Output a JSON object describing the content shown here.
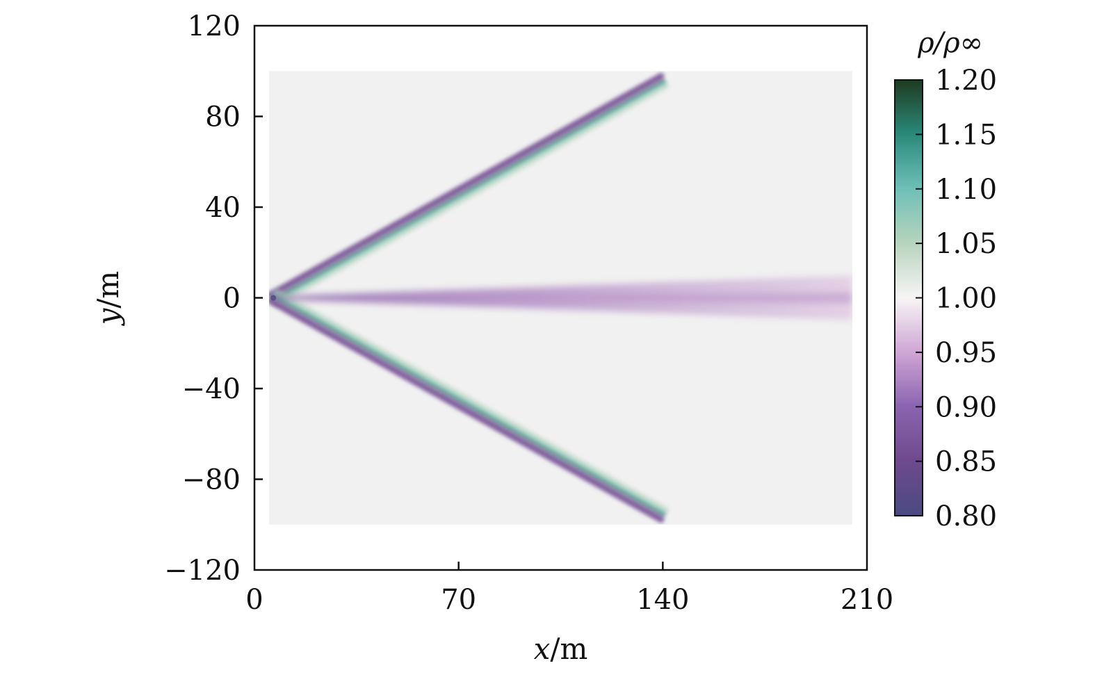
{
  "chart_data": {
    "type": "heatmap",
    "title": "",
    "xlabel": {
      "var": "x",
      "unit": "/m"
    },
    "ylabel": {
      "var": "y",
      "unit": "/m"
    },
    "xlim": [
      0,
      210
    ],
    "ylim": [
      -120,
      120
    ],
    "xticks": [
      0,
      70,
      140,
      210
    ],
    "yticks": [
      120,
      80,
      40,
      0,
      -40,
      -80,
      -120
    ],
    "ytick_labels": [
      "120",
      "80",
      "40",
      "0",
      "−40",
      "−80",
      "−120"
    ],
    "field_extent": {
      "x": [
        5,
        205
      ],
      "y": [
        -100,
        100
      ]
    },
    "field_background": 1.0,
    "features": [
      {
        "kind": "shock-wedge",
        "apex": [
          6,
          0
        ],
        "direction": "upper",
        "slope": 0.72,
        "x_end": 140
      },
      {
        "kind": "shock-wedge",
        "apex": [
          6,
          0
        ],
        "direction": "lower",
        "slope": -0.72,
        "x_end": 140
      },
      {
        "kind": "wake",
        "y": 0,
        "x_start": 6,
        "x_end": 205,
        "min_value": 0.88
      }
    ],
    "colorbar": {
      "title": "ρ/ρ∞",
      "range": [
        0.8,
        1.2
      ],
      "ticks": [
        "1.20",
        "1.15",
        "1.10",
        "1.05",
        "1.00",
        "0.95",
        "0.90",
        "0.85",
        "0.80"
      ],
      "stops": [
        {
          "v": 0.8,
          "color": "#4a4a80"
        },
        {
          "v": 0.85,
          "color": "#6e4a8c"
        },
        {
          "v": 0.9,
          "color": "#8a64b0"
        },
        {
          "v": 0.95,
          "color": "#cfa6d4"
        },
        {
          "v": 1.0,
          "color": "#f7f5f5"
        },
        {
          "v": 1.05,
          "color": "#b7d4bd"
        },
        {
          "v": 1.1,
          "color": "#6fc0b7"
        },
        {
          "v": 1.15,
          "color": "#2a8a7a"
        },
        {
          "v": 1.2,
          "color": "#1e3a20"
        }
      ]
    }
  }
}
